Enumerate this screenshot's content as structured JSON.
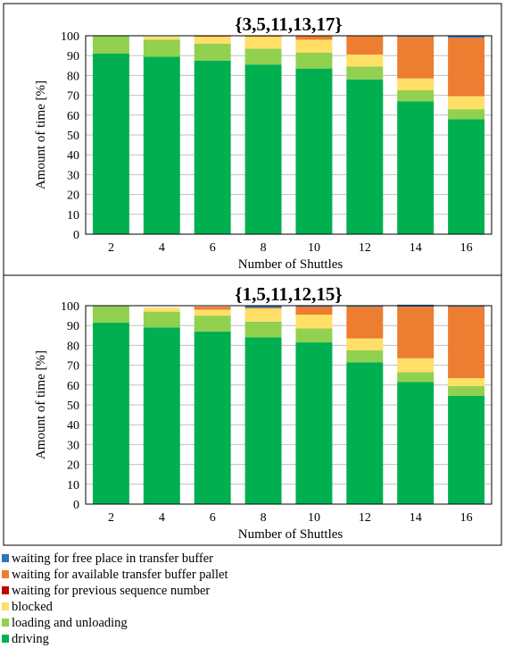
{
  "colors": {
    "driving": "#00b050",
    "loading": "#92d050",
    "blocked": "#ffdf66",
    "previous_seq": "#c00000",
    "available_pallet": "#ed7d31",
    "free_place": "#2e75b6",
    "grid": "#bfbfbf"
  },
  "legend": [
    {
      "label": "waiting for free place in transfer buffer",
      "color_key": "free_place"
    },
    {
      "label": "waiting for available transfer buffer pallet",
      "color_key": "available_pallet"
    },
    {
      "label": "waiting for previous sequence number",
      "color_key": "previous_seq"
    },
    {
      "label": "blocked",
      "color_key": "blocked"
    },
    {
      "label": "loading and unloading",
      "color_key": "loading"
    },
    {
      "label": "driving",
      "color_key": "driving"
    }
  ],
  "chart_data": [
    {
      "type": "bar",
      "stacked": true,
      "title": "{3,5,11,13,17}",
      "xlabel": "Number of Shuttles",
      "ylabel": "Amount of time [%]",
      "ylim": [
        0,
        100
      ],
      "yticks": [
        0,
        10,
        20,
        30,
        40,
        50,
        60,
        70,
        80,
        90,
        100
      ],
      "grid": "horizontal",
      "categories": [
        "2",
        "4",
        "6",
        "8",
        "10",
        "12",
        "14",
        "16"
      ],
      "series": [
        {
          "name": "driving",
          "color_key": "driving",
          "values": [
            91,
            89.5,
            87.5,
            85.5,
            83.5,
            78,
            67,
            58
          ]
        },
        {
          "name": "loading and unloading",
          "color_key": "loading",
          "values": [
            9,
            8.5,
            8.5,
            8,
            8,
            6.5,
            5.5,
            5
          ]
        },
        {
          "name": "blocked",
          "color_key": "blocked",
          "values": [
            0,
            1.5,
            3.5,
            6,
            6.5,
            6,
            6,
            6.5
          ]
        },
        {
          "name": "waiting for previous sequence number",
          "color_key": "previous_seq",
          "values": [
            0,
            0,
            0,
            0,
            0,
            0,
            0,
            0
          ]
        },
        {
          "name": "waiting for available transfer buffer pallet",
          "color_key": "available_pallet",
          "values": [
            0,
            0,
            0.5,
            0.5,
            2,
            9.5,
            21,
            29.5
          ]
        },
        {
          "name": "waiting for free place in transfer buffer",
          "color_key": "free_place",
          "values": [
            0,
            0,
            0,
            0,
            0,
            0,
            0.5,
            1
          ]
        }
      ]
    },
    {
      "type": "bar",
      "stacked": true,
      "title": "{1,5,11,12,15}",
      "xlabel": "Number of Shuttles",
      "ylabel": "Amount of time [%]",
      "ylim": [
        0,
        100
      ],
      "yticks": [
        0,
        10,
        20,
        30,
        40,
        50,
        60,
        70,
        80,
        90,
        100
      ],
      "grid": "horizontal",
      "categories": [
        "2",
        "4",
        "6",
        "8",
        "10",
        "12",
        "14",
        "16"
      ],
      "series": [
        {
          "name": "driving",
          "color_key": "driving",
          "values": [
            91.5,
            89,
            87,
            84,
            81.5,
            71.5,
            61.5,
            54.5
          ]
        },
        {
          "name": "loading and unloading",
          "color_key": "loading",
          "values": [
            8.5,
            8,
            8,
            8,
            7,
            6,
            5,
            5
          ]
        },
        {
          "name": "blocked",
          "color_key": "blocked",
          "values": [
            0,
            2,
            3,
            6.5,
            7,
            6,
            7,
            4
          ]
        },
        {
          "name": "waiting for previous sequence number",
          "color_key": "previous_seq",
          "values": [
            0,
            0,
            0,
            0,
            0,
            0,
            0,
            0
          ]
        },
        {
          "name": "waiting for available transfer buffer pallet",
          "color_key": "available_pallet",
          "values": [
            0,
            0,
            1.5,
            0.5,
            4,
            16,
            26,
            36
          ]
        },
        {
          "name": "waiting for free place in transfer buffer",
          "color_key": "free_place",
          "values": [
            0,
            0,
            0,
            1,
            0.5,
            0.5,
            1,
            0.5
          ]
        }
      ]
    }
  ]
}
